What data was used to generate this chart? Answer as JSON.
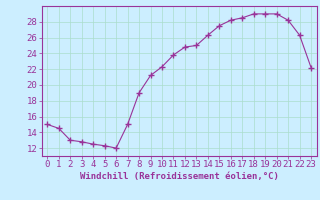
{
  "x": [
    0,
    1,
    2,
    3,
    4,
    5,
    6,
    7,
    8,
    9,
    10,
    11,
    12,
    13,
    14,
    15,
    16,
    17,
    18,
    19,
    20,
    21,
    22,
    23
  ],
  "y": [
    15.0,
    14.5,
    13.0,
    12.8,
    12.5,
    12.3,
    12.0,
    15.0,
    19.0,
    21.2,
    22.3,
    23.8,
    24.8,
    25.0,
    26.3,
    27.5,
    28.2,
    28.5,
    29.0,
    29.0,
    29.0,
    28.2,
    26.3,
    22.2
  ],
  "line_color": "#993399",
  "bg_color": "#cceeff",
  "grid_color": "#aaddcc",
  "xlabel": "Windchill (Refroidissement éolien,°C)",
  "ylim": [
    11,
    30
  ],
  "xlim": [
    -0.5,
    23.5
  ],
  "yticks": [
    12,
    14,
    16,
    18,
    20,
    22,
    24,
    26,
    28
  ],
  "xticks": [
    0,
    1,
    2,
    3,
    4,
    5,
    6,
    7,
    8,
    9,
    10,
    11,
    12,
    13,
    14,
    15,
    16,
    17,
    18,
    19,
    20,
    21,
    22,
    23
  ],
  "xlabel_fontsize": 6.5,
  "tick_fontsize": 6.5,
  "marker": "+",
  "markersize": 4,
  "linewidth": 0.8
}
